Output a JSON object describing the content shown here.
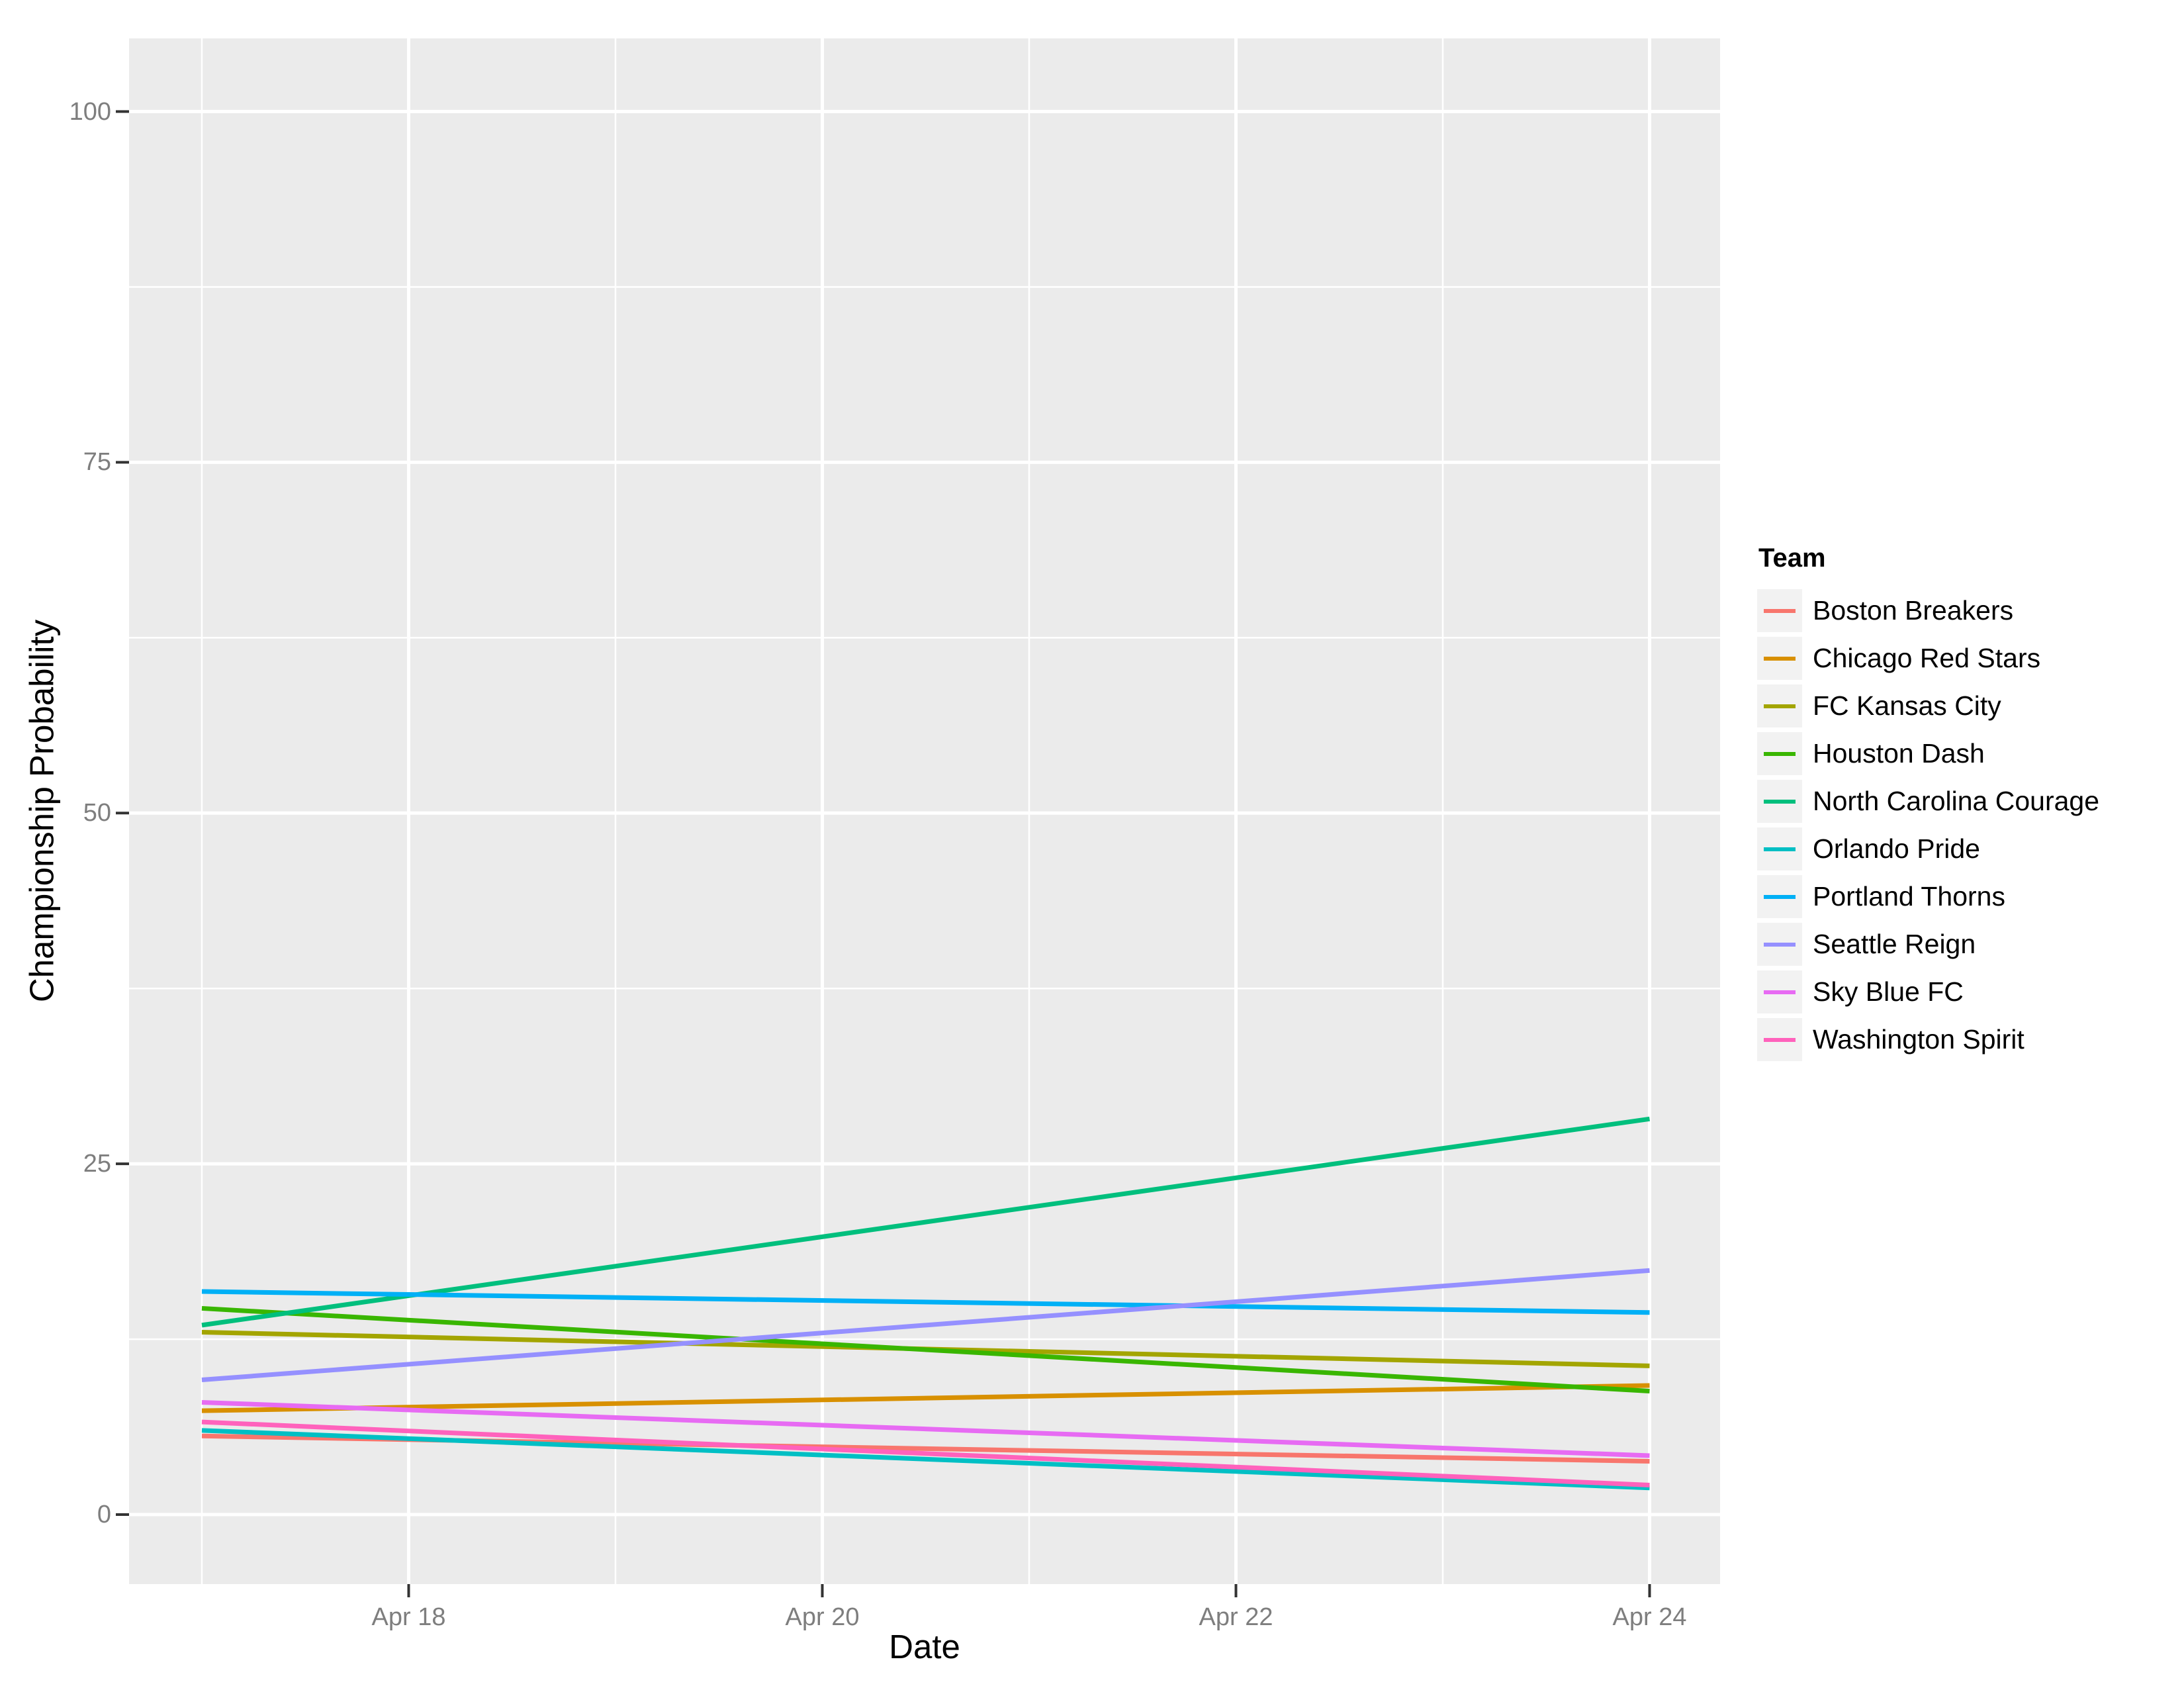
{
  "figure": {
    "background": "#FFFFFF",
    "panel_background": "#EBEBEB",
    "gridline_color": "#FFFFFF",
    "tick_mark_color": "#333333",
    "tick_label_color": "#7E7E7E",
    "axis_title_color": "#000000"
  },
  "axes": {
    "x_title": "Date",
    "y_title": "Championship Probability",
    "x_tick_labels": [
      "Apr 18",
      "Apr 20",
      "Apr 22",
      "Apr 24"
    ],
    "x_tick_days": [
      18,
      20,
      22,
      24
    ],
    "x_minor_days": [
      17,
      19,
      21,
      23
    ],
    "y_tick_labels": [
      "0",
      "25",
      "50",
      "75",
      "100"
    ],
    "y_tick_values": [
      0,
      25,
      50,
      75,
      100
    ],
    "y_minor_values": [
      12.5,
      37.5,
      62.5,
      87.5
    ]
  },
  "legend": {
    "title": "Team",
    "key_fill": "#F2F2F2",
    "position": "right"
  },
  "chart_data": {
    "type": "line",
    "title": "",
    "xlabel": "Date",
    "ylabel": "Championship Probability",
    "x": [
      "Apr 17",
      "Apr 24"
    ],
    "x_days": [
      17,
      24
    ],
    "ylim": [
      -5,
      105
    ],
    "grid": true,
    "legend_position": "right",
    "series": [
      {
        "name": "Boston Breakers",
        "color": "#F8766D",
        "values": [
          5.6,
          3.8
        ]
      },
      {
        "name": "Chicago Red Stars",
        "color": "#D89000",
        "values": [
          7.4,
          9.2
        ]
      },
      {
        "name": "FC Kansas City",
        "color": "#A3A500",
        "values": [
          13.0,
          10.6
        ]
      },
      {
        "name": "Houston Dash",
        "color": "#39B600",
        "values": [
          14.7,
          8.8
        ]
      },
      {
        "name": "North Carolina Courage",
        "color": "#00BF7D",
        "values": [
          13.5,
          28.2
        ]
      },
      {
        "name": "Orlando Pride",
        "color": "#00BFC4",
        "values": [
          6.0,
          1.9
        ]
      },
      {
        "name": "Portland Thorns",
        "color": "#00B0F6",
        "values": [
          15.9,
          14.4
        ]
      },
      {
        "name": "Seattle Reign",
        "color": "#9590FF",
        "values": [
          9.6,
          17.4
        ]
      },
      {
        "name": "Sky Blue FC",
        "color": "#E76BF3",
        "values": [
          8.0,
          4.2
        ]
      },
      {
        "name": "Washington Spirit",
        "color": "#FF62BC",
        "values": [
          6.6,
          2.1
        ]
      }
    ]
  }
}
